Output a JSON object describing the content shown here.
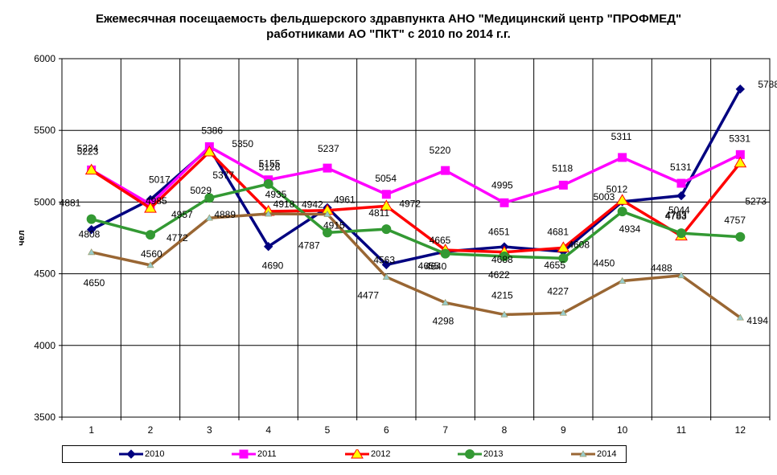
{
  "chart_data": {
    "type": "line",
    "title_lines": [
      "Ежемесячная посещаемость фельдшерского здравпункта АНО \"Медицинский центр \"ПРОФМЕД\"",
      "работниками АО \"ПКТ\" с 2010 по 2014  г.г."
    ],
    "ylabel": "чел",
    "xlabel": "",
    "ylim": [
      3500,
      6000
    ],
    "yticks": [
      3500,
      4000,
      4500,
      5000,
      5500,
      6000
    ],
    "categories": [
      "1",
      "2",
      "3",
      "4",
      "5",
      "6",
      "7",
      "8",
      "9",
      "10",
      "11",
      "12"
    ],
    "grid": true,
    "legend_position": "bottom",
    "series": [
      {
        "name": "2010",
        "color": "#000080",
        "marker": "diamond",
        "values": [
          4808,
          5017,
          5377,
          4690,
          4961,
          4563,
          4655,
          4688,
          4655,
          5003,
          5044,
          5788
        ]
      },
      {
        "name": "2011",
        "color": "#FF00FF",
        "marker": "square",
        "values": [
          5224,
          4985,
          5386,
          5155,
          5237,
          5054,
          5220,
          4995,
          5118,
          5311,
          5131,
          5331
        ]
      },
      {
        "name": "2012",
        "color": "#FF0000",
        "marker": "triangle",
        "values": [
          5223,
          4957,
          5350,
          4935,
          4942,
          4972,
          4665,
          4651,
          4681,
          5012,
          4763,
          5273
        ]
      },
      {
        "name": "2013",
        "color": "#339933",
        "marker": "circle",
        "values": [
          4881,
          4772,
          5029,
          5126,
          4787,
          4811,
          4640,
          4622,
          4608,
          4934,
          4783,
          4757
        ]
      },
      {
        "name": "2014",
        "color": "#996633",
        "marker": "triangle-small",
        "values": [
          4650,
          4560,
          4889,
          4918,
          4915,
          4477,
          4298,
          4215,
          4227,
          4450,
          4488,
          4194
        ]
      }
    ]
  }
}
